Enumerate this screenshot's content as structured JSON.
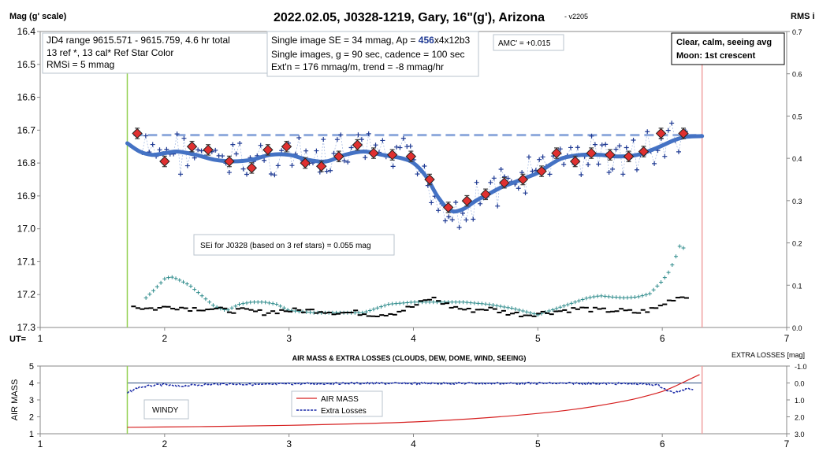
{
  "title": "2022.02.05, J0328-1219, Gary, 16\"(g'), Arizona",
  "version": "- v2205",
  "colors": {
    "fit": "#4472c4",
    "dashed": "#8faadc",
    "marker": "#e03030",
    "plus": "#1f3a93",
    "teal": "#2e8b8b",
    "airmass": "#d62020",
    "extra": "#1a2aa8",
    "start": "#92d050",
    "end": "#f0a0a0"
  },
  "chart_data": [
    {
      "type": "scatter",
      "title": "2022.02.05, J0328-1219, Gary, 16\"(g'), Arizona",
      "ylabel": "Mag (g' scale)",
      "y2label": "RMS i",
      "xlabel": "UT=",
      "xlim": [
        1,
        7
      ],
      "ylim": [
        16.4,
        17.3
      ],
      "y2lim": [
        0.0,
        0.7
      ],
      "x_ticks": [
        "1",
        "2",
        "3",
        "4",
        "5",
        "6",
        "7"
      ],
      "y_ticks": [
        "16.4",
        "16.5",
        "16.6",
        "16.7",
        "16.8",
        "16.9",
        "17.0",
        "17.1",
        "17.2",
        "17.3"
      ],
      "y2_ticks": [
        "0.7",
        "0.6",
        "0.5",
        "0.4",
        "0.3",
        "0.2",
        "0.1",
        "0.0"
      ],
      "ut_start": 1.7,
      "ut_end": 6.32,
      "reference_mag": 16.715,
      "series": [
        {
          "kind": "binned",
          "x": [
            1.78,
            2.0,
            2.22,
            2.35,
            2.52,
            2.7,
            2.83,
            2.98,
            3.13,
            3.26,
            3.4,
            3.55,
            3.68,
            3.83,
            3.98,
            4.13,
            4.28,
            4.43,
            4.58,
            4.73,
            4.88,
            5.03,
            5.15,
            5.3,
            5.43,
            5.58,
            5.73,
            5.85,
            5.99,
            6.17
          ],
          "y": [
            16.71,
            16.795,
            16.75,
            16.76,
            16.795,
            16.815,
            16.76,
            16.75,
            16.8,
            16.81,
            16.78,
            16.745,
            16.77,
            16.775,
            16.78,
            16.85,
            16.935,
            16.915,
            16.895,
            16.86,
            16.85,
            16.825,
            16.77,
            16.795,
            16.77,
            16.775,
            16.78,
            16.765,
            16.71,
            16.71
          ]
        },
        {
          "kind": "fit",
          "x": [
            1.7,
            1.8,
            1.9,
            2.0,
            2.1,
            2.25,
            2.4,
            2.55,
            2.7,
            2.85,
            3.0,
            3.15,
            3.3,
            3.45,
            3.6,
            3.75,
            3.9,
            4.0,
            4.1,
            4.2,
            4.3,
            4.4,
            4.5,
            4.6,
            4.7,
            4.8,
            4.9,
            5.0,
            5.1,
            5.2,
            5.35,
            5.5,
            5.65,
            5.8,
            5.95,
            6.1,
            6.2,
            6.32
          ],
          "y": [
            16.74,
            16.765,
            16.775,
            16.77,
            16.765,
            16.775,
            16.79,
            16.795,
            16.79,
            16.775,
            16.775,
            16.79,
            16.795,
            16.775,
            16.765,
            16.775,
            16.785,
            16.8,
            16.84,
            16.905,
            16.945,
            16.94,
            16.915,
            16.895,
            16.875,
            16.86,
            16.845,
            16.83,
            16.805,
            16.785,
            16.775,
            16.775,
            16.78,
            16.775,
            16.755,
            16.73,
            16.72,
            16.718
          ]
        },
        {
          "kind": "rms_i",
          "x": [
            1.85,
            1.92,
            2.0,
            2.05,
            2.1,
            2.2,
            2.3,
            2.4,
            2.5,
            2.6,
            2.7,
            2.8,
            2.9,
            3.0,
            3.2,
            3.4,
            3.6,
            3.8,
            4.0,
            4.2,
            4.4,
            4.6,
            4.8,
            5.0,
            5.2,
            5.4,
            5.5,
            5.6,
            5.7,
            5.8,
            5.9,
            6.0,
            6.05,
            6.1,
            6.15,
            6.2
          ],
          "y": [
            0.07,
            0.09,
            0.115,
            0.12,
            0.115,
            0.1,
            0.075,
            0.05,
            0.04,
            0.055,
            0.06,
            0.06,
            0.055,
            0.04,
            0.035,
            0.035,
            0.035,
            0.055,
            0.06,
            0.06,
            0.06,
            0.055,
            0.045,
            0.03,
            0.05,
            0.07,
            0.075,
            0.072,
            0.07,
            0.072,
            0.08,
            0.11,
            0.13,
            0.16,
            0.2,
            0.17
          ]
        },
        {
          "kind": "ref_stars",
          "x": [
            1.75,
            1.85,
            1.95,
            2.05,
            2.2,
            2.35,
            2.5,
            2.65,
            2.8,
            2.95,
            3.1,
            3.25,
            3.4,
            3.55,
            3.7,
            3.85,
            4.0,
            4.15,
            4.3,
            4.45,
            4.6,
            4.75,
            4.9,
            5.05,
            5.2,
            5.35,
            5.5,
            5.65,
            5.8,
            5.95,
            6.1,
            6.2
          ],
          "y": [
            0.05,
            0.045,
            0.045,
            0.05,
            0.045,
            0.045,
            0.04,
            0.04,
            0.035,
            0.04,
            0.04,
            0.04,
            0.035,
            0.035,
            0.03,
            0.035,
            0.05,
            0.07,
            0.05,
            0.04,
            0.045,
            0.035,
            0.03,
            0.035,
            0.04,
            0.045,
            0.04,
            0.04,
            0.035,
            0.045,
            0.07,
            0.075
          ]
        }
      ],
      "annotations": {
        "box1": [
          "JD4 range 9615.571 - 9615.759, 4.6 hr total",
          "13 ref *, 13 cal*  Ref Star Color",
          "RMSi = 5 mmag"
        ],
        "box2_line1_pre": "Single image SE = 34 mmag, Ap = ",
        "box2_line1_ap": "456",
        "box2_line1_post": "x4x12b3",
        "box2_line2": "Single images, g = 90 sec, cadence = 100 sec",
        "box2_line3": "Ext'n = 176 mmag/m, trend = -8 mmag/hr",
        "amc": "AMC' = +0.015",
        "conditions": [
          "Clear, calm, seeing avg",
          "Moon: 1st crescent"
        ],
        "sei": "SEi for J0328 (based on 3 ref stars) = 0.055 mag"
      }
    },
    {
      "type": "line",
      "title": "AIR MASS & EXTRA LOSSES (CLOUDS, DEW, DOME, WIND, SEEING)",
      "ylabel": "AIR MASS",
      "y2label": "EXTRA LOSSES [mag]",
      "xlim": [
        1,
        7
      ],
      "ylim": [
        1,
        5
      ],
      "y2lim": [
        -1.0,
        3.0
      ],
      "x_ticks": [
        "1",
        "2",
        "3",
        "4",
        "5",
        "6",
        "7"
      ],
      "y_ticks": [
        "5",
        "4",
        "3",
        "2",
        "1"
      ],
      "y2_ticks": [
        "-1.0",
        "0.0",
        "1.0",
        "2.0",
        "3.0"
      ],
      "legend": [
        "AIR MASS",
        "Extra Losses"
      ],
      "legend_position": "center",
      "windy_label": "WINDY",
      "series": [
        {
          "name": "AIR MASS",
          "x": [
            1.7,
            2.0,
            2.5,
            3.0,
            3.5,
            4.0,
            4.5,
            5.0,
            5.3,
            5.6,
            5.8,
            6.0,
            6.1,
            6.2,
            6.3
          ],
          "y": [
            1.38,
            1.4,
            1.44,
            1.5,
            1.58,
            1.7,
            1.9,
            2.2,
            2.45,
            2.8,
            3.1,
            3.5,
            3.8,
            4.15,
            4.5
          ]
        },
        {
          "name": "Extra Losses",
          "x": [
            1.7,
            1.75,
            1.8,
            1.9,
            2.0,
            2.1,
            2.3,
            2.5,
            2.8,
            3.0,
            3.5,
            4.0,
            4.5,
            5.0,
            5.5,
            5.8,
            5.95,
            6.0,
            6.05,
            6.1,
            6.15,
            6.2,
            6.25
          ],
          "y": [
            0.6,
            0.4,
            0.25,
            0.15,
            0.1,
            0.2,
            0.1,
            0.05,
            0.1,
            0.05,
            0.02,
            0.03,
            0.02,
            0.02,
            0.03,
            0.05,
            0.1,
            0.25,
            0.5,
            0.55,
            0.5,
            0.3,
            0.35
          ]
        }
      ]
    }
  ]
}
